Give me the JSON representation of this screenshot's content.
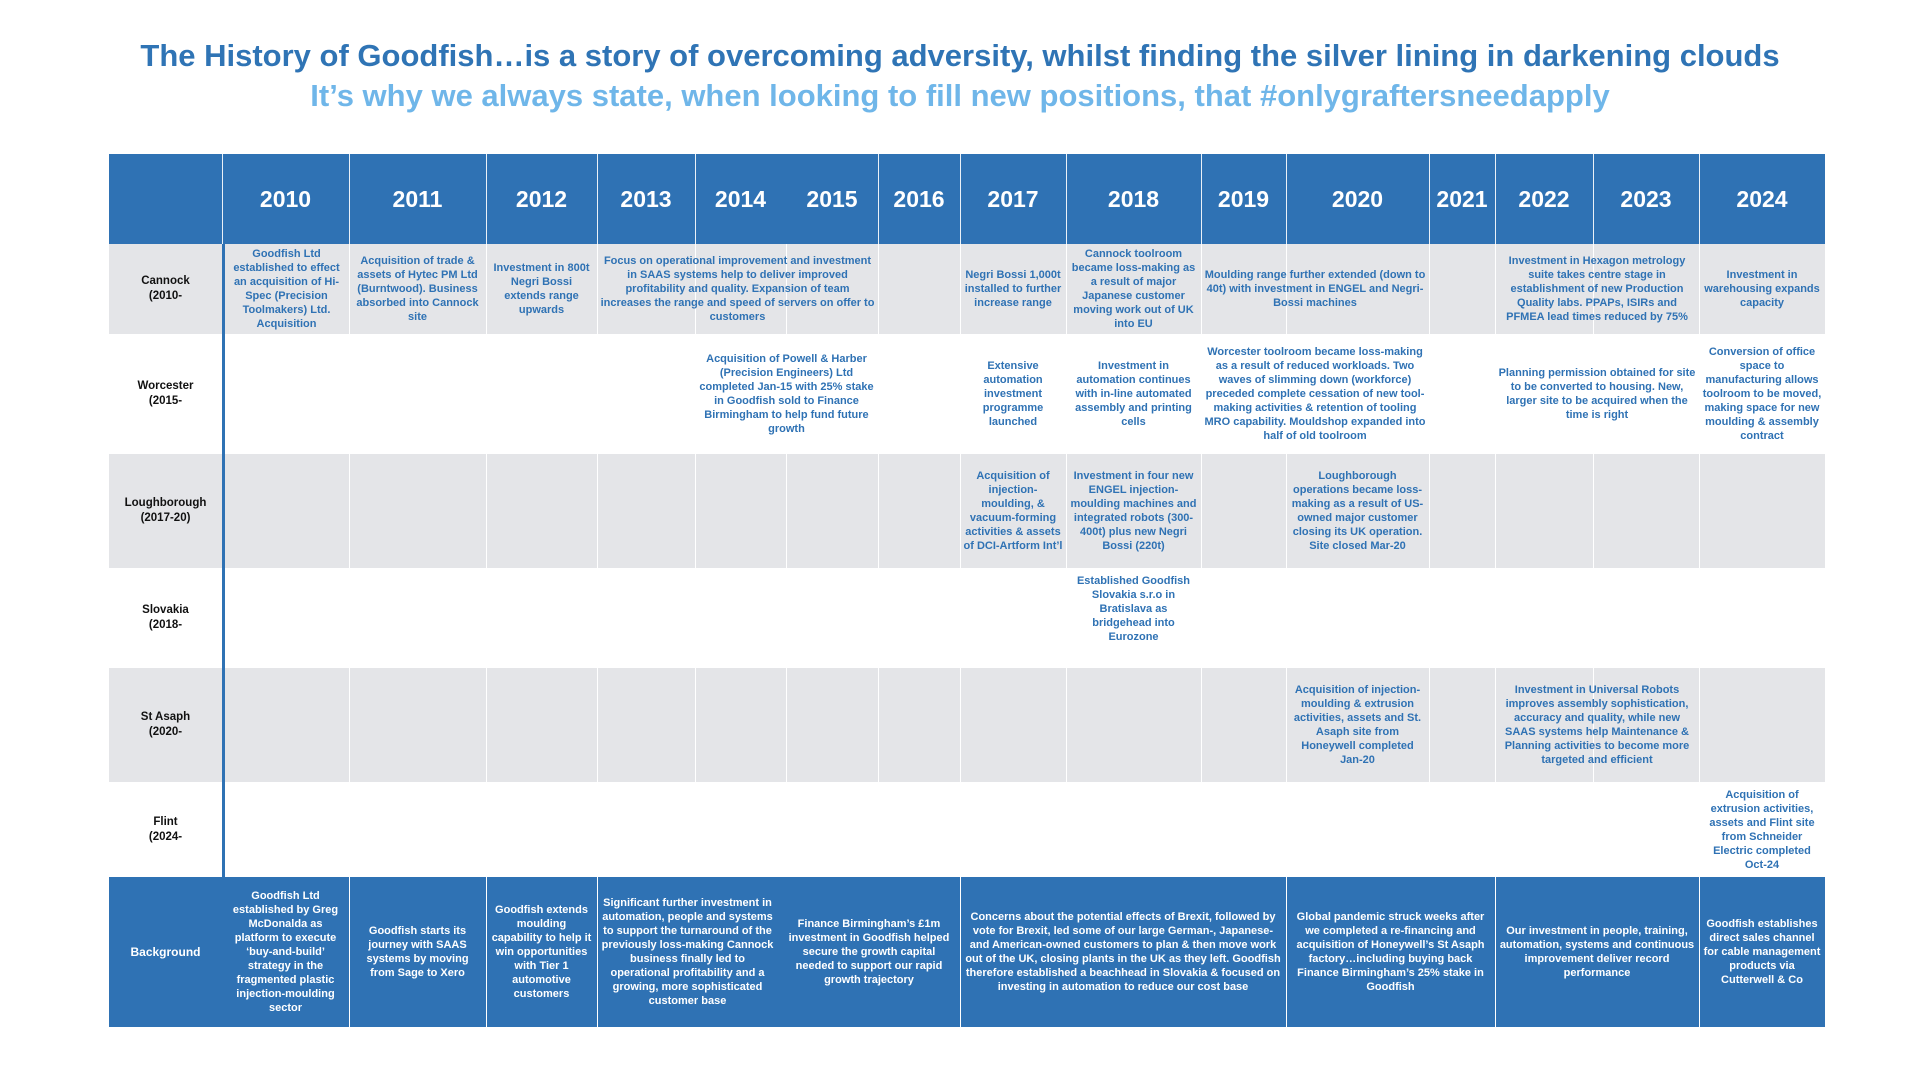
{
  "title": "The History of Goodfish…is a story of overcoming adversity, whilst finding the silver lining in darkening clouds",
  "subtitle": "It’s why we always state, when looking to fill new positions, that #onlygraftersneedapply",
  "years": [
    "2010",
    "2011",
    "2012",
    "2013",
    "2014",
    "2015",
    "2016",
    "2017",
    "2018",
    "2019",
    "2020",
    "2021",
    "2022",
    "2023",
    "2024"
  ],
  "rows": {
    "cannock": "Cannock\n(2010-",
    "worcester": "Worcester\n(2015-",
    "loughborough": "Loughborough\n(2017-20)",
    "slovakia": "Slovakia\n(2018-",
    "stasaph": "St Asaph\n(2020-",
    "flint": "Flint\n(2024-",
    "background": "Background"
  },
  "cannock": {
    "c2010": "Goodfish Ltd established to effect an acquisition of Hi-Spec (Precision Toolmakers) Ltd. Acquisition",
    "c2011": "Acquisition of trade & assets of Hytec PM Ltd (Burntwood). Business absorbed into Cannock site",
    "c2012": "Investment in 800t Negri Bossi extends range upwards",
    "c2013": "Focus on operational improvement and investment in SAAS systems help to deliver improved profitability and quality. Expansion of team increases the range and speed of servers on offer to customers",
    "c2017": "Negri Bossi 1,000t installed to further increase range",
    "c2018": "Cannock toolroom became loss-making as a result of major Japanese customer moving work out of UK into EU",
    "c2019": "Moulding range further extended (down to 40t) with investment in ENGEL and Negri-Bossi machines",
    "c2022": "Investment in Hexagon metrology suite takes centre stage in establishment of new Production Quality labs. PPAPs, ISIRs and PFMEA lead times reduced by 75%",
    "c2024": "Investment in warehousing expands capacity"
  },
  "worcester": {
    "c2014": "Acquisition of Powell & Harber (Precision Engineers) Ltd completed Jan-15 with 25% stake in Goodfish sold to Finance Birmingham to help fund future growth",
    "c2017": "Extensive automation investment programme launched",
    "c2018": "Investment in automation continues with in-line automated assembly and printing cells",
    "c2019": "Worcester toolroom became loss-making as a result of reduced workloads. Two waves of slimming down (workforce) preceded complete cessation of new tool-making activities & retention of tooling MRO capability. Mouldshop expanded into half of old toolroom",
    "c2022": "Planning permission obtained for site to be converted to housing. New, larger site to be acquired when the time is right",
    "c2024": "Conversion of office space to manufacturing allows toolroom to be moved, making space for new moulding & assembly contract"
  },
  "loughborough": {
    "c2017": "Acquisition of injection-moulding, & vacuum-forming activities & assets of DCI-Artform Int’l",
    "c2018": "Investment in four new ENGEL injection-moulding machines and integrated robots (300-400t) plus new Negri Bossi (220t)",
    "c2020": "Loughborough operations became loss-making as a result of US-owned major customer closing its UK operation. Site closed Mar-20"
  },
  "slovakia": {
    "c2018": "Established Goodfish Slovakia s.r.o in Bratislava as bridgehead into Eurozone"
  },
  "stasaph": {
    "c2020": "Acquisition of injection-moulding & extrusion activities, assets and St. Asaph site from Honeywell completed Jan-20",
    "c2022": "Investment in Universal Robots improves assembly sophistication, accuracy and quality, while new SAAS systems help Maintenance & Planning activities to become more targeted and efficient"
  },
  "flint": {
    "c2024": "Acquisition of extrusion activities, assets and Flint site from Schneider Electric completed Oct-24"
  },
  "background": {
    "c2010": "Goodfish Ltd established by Greg McDonalda as platform to execute ‘buy-and-build’ strategy in the fragmented plastic injection-moulding sector",
    "c2011": "Goodfish starts its journey with SAAS systems by moving from Sage to Xero",
    "c2012": "Goodfish extends moulding capability to help it win opportunities with Tier 1 automotive customers",
    "c2013": "Significant further investment in automation, people and systems to support the turnaround of the previously loss-making Cannock business finally led to operational profitability and a growing, more sophisticated customer base",
    "c2015": "Finance Birmingham’s £1m investment in Goodfish helped secure the growth capital needed to support our rapid growth trajectory",
    "c2017": "Concerns about the potential effects of Brexit, followed by vote for Brexit, led some of our large German-, Japanese- and American-owned customers to plan & then move work out of the UK, closing plants in the UK as they left. Goodfish therefore established a beachhead in Slovakia & focused on investing in automation to reduce our cost base",
    "c2020": "Global pandemic struck weeks after we completed a re-financing and acquisition of Honeywell’s St Asaph factory…including buying back Finance Birmingham’s 25% stake in Goodfish",
    "c2022": "Our investment in people, training, automation, systems and continuous improvement deliver record performance",
    "c2024": "Goodfish establishes direct sales channel for cable management products via Cutterwell & Co"
  }
}
